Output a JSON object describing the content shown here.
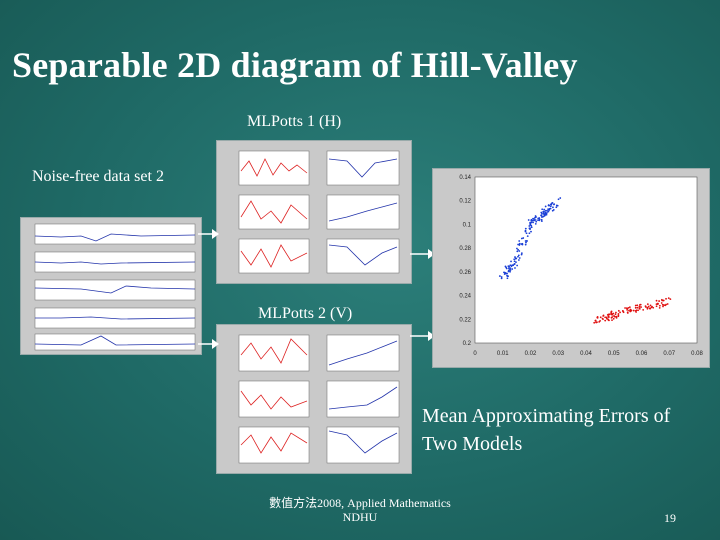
{
  "slide": {
    "title": "Separable 2D diagram of Hill-Valley",
    "label_mlpotts1": "MLPotts 1 (H)",
    "label_noise_free": "Noise-free data set 2",
    "label_mlpotts2": "MLPotts 2 (V)",
    "label_errors_line1": "Mean Approximating Errors of",
    "label_errors_line2": "Two Models",
    "footer_line1": "數值方法2008, Applied Mathematics",
    "footer_line2": "NDHU",
    "page_number": "19"
  },
  "colors": {
    "background": "#1f6a66",
    "text": "#ffffff",
    "panel": "#c9c9c9",
    "blue_cluster": "#1a3fd6",
    "red_cluster": "#e01010"
  },
  "chart_data": {
    "type": "scatter",
    "x_ticks": [
      "0",
      "0.01",
      "0.02",
      "0.03",
      "0.04",
      "0.05",
      "0.06",
      "0.07",
      "0.08"
    ],
    "y_ticks": [
      "0.2",
      "0.22",
      "0.24",
      "0.26",
      "0.28",
      "0.1",
      "0.12",
      "0.14"
    ],
    "xlim": [
      0,
      0.08
    ],
    "ylim": [
      0.2,
      0.34
    ],
    "series": [
      {
        "color": "#1a3fd6",
        "description_points": [
          [
            0.01,
            0.255
          ],
          [
            0.015,
            0.27
          ],
          [
            0.02,
            0.3
          ],
          [
            0.025,
            0.31
          ],
          [
            0.03,
            0.32
          ]
        ]
      },
      {
        "color": "#e01010",
        "description_points": [
          [
            0.043,
            0.218
          ],
          [
            0.05,
            0.224
          ],
          [
            0.06,
            0.23
          ],
          [
            0.07,
            0.235
          ]
        ]
      }
    ]
  }
}
